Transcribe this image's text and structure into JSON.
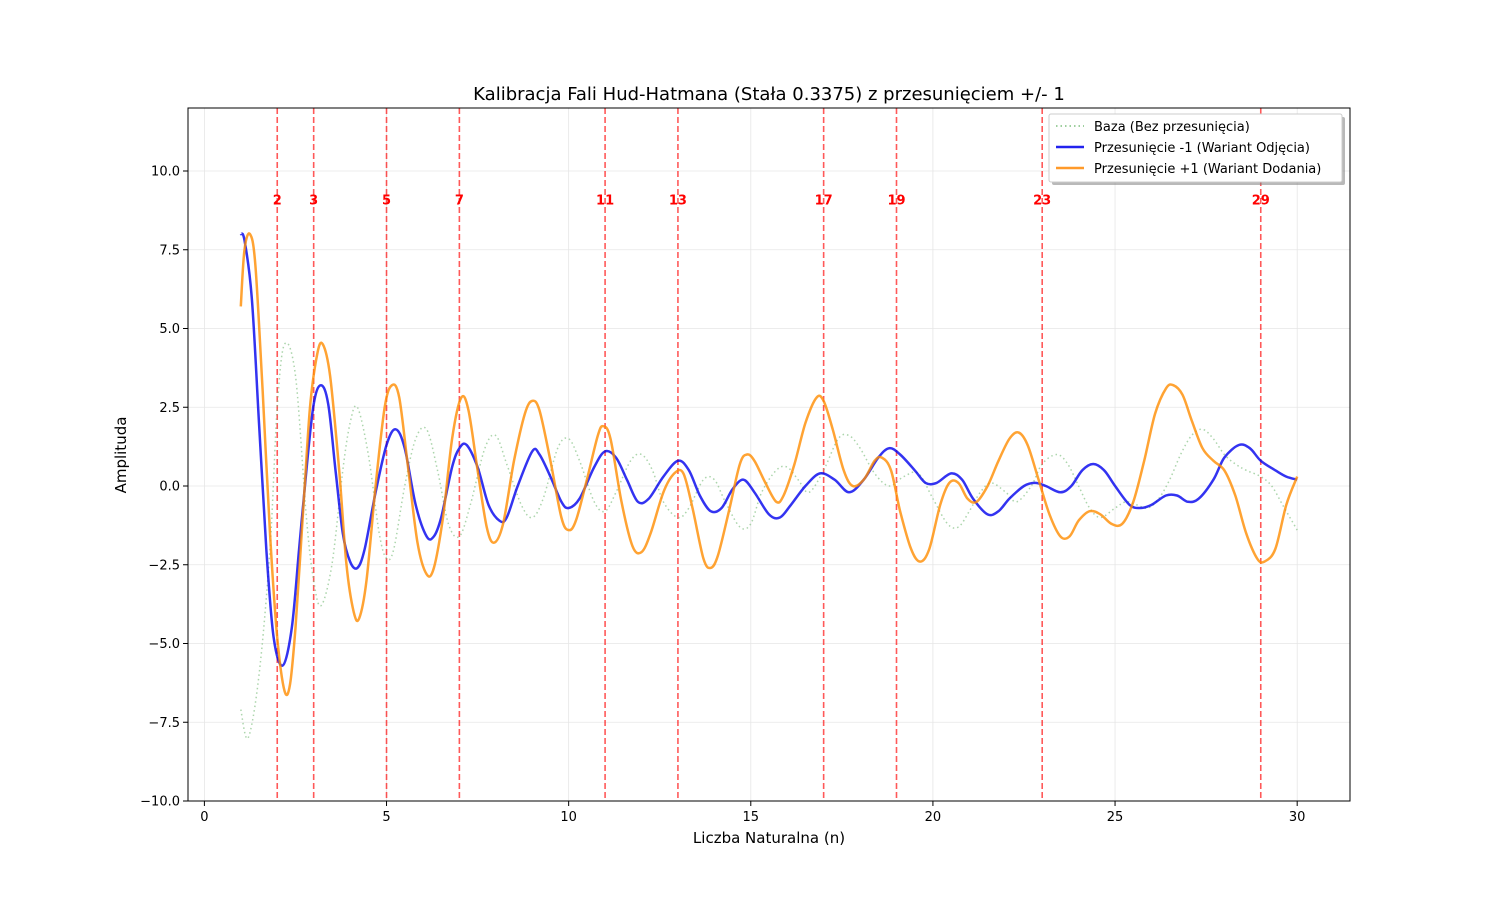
{
  "chart_data": {
    "type": "line",
    "title": "Kalibracja Fali Hud-Hatmana (Stała 0.3375) z przesunięciem +/- 1",
    "xlabel": "Liczba Naturalna (n)",
    "ylabel": "Amplituda",
    "xlim": [
      -0.45,
      31.45
    ],
    "ylim": [
      -10,
      12
    ],
    "xticks": [
      0,
      5,
      10,
      15,
      20,
      25,
      30
    ],
    "xtick_labels": [
      "0",
      "5",
      "10",
      "15",
      "20",
      "25",
      "30"
    ],
    "yticks": [
      -10,
      -7.5,
      -5,
      -2.5,
      0,
      2.5,
      5,
      7.5,
      10
    ],
    "ytick_labels": [
      "−10.0",
      "−7.5",
      "−5.0",
      "−2.5",
      "0.0",
      "2.5",
      "5.0",
      "7.5",
      "10.0"
    ],
    "grid": true,
    "legend_position": "top-right",
    "primes": {
      "values": [
        2,
        3,
        5,
        7,
        11,
        13,
        17,
        19,
        23,
        29
      ],
      "labels": [
        "2",
        "3",
        "5",
        "7",
        "11",
        "13",
        "17",
        "19",
        "23",
        "29"
      ],
      "label_y": 9.1,
      "color": "#ff0000"
    },
    "series": [
      {
        "name": "Baza (Bez przesunięcia)",
        "color": "#7fbf7f",
        "style": "dotted",
        "points": [
          [
            1.0,
            -7.1
          ],
          [
            1.2,
            -8.0
          ],
          [
            1.5,
            -6.0
          ],
          [
            1.8,
            -2.0
          ],
          [
            2.0,
            2.5
          ],
          [
            2.2,
            4.5
          ],
          [
            2.5,
            3.5
          ],
          [
            2.8,
            -1.0
          ],
          [
            3.0,
            -3.0
          ],
          [
            3.2,
            -3.8
          ],
          [
            3.5,
            -2.5
          ],
          [
            3.8,
            0.5
          ],
          [
            4.0,
            2.0
          ],
          [
            4.2,
            2.5
          ],
          [
            4.5,
            1.0
          ],
          [
            4.8,
            -1.5
          ],
          [
            5.0,
            -2.3
          ],
          [
            5.2,
            -2.0
          ],
          [
            5.5,
            0.0
          ],
          [
            5.8,
            1.5
          ],
          [
            6.1,
            1.8
          ],
          [
            6.4,
            0.5
          ],
          [
            6.7,
            -1.2
          ],
          [
            7.0,
            -1.6
          ],
          [
            7.3,
            -0.6
          ],
          [
            7.7,
            1.2
          ],
          [
            8.0,
            1.6
          ],
          [
            8.3,
            0.7
          ],
          [
            8.7,
            -0.6
          ],
          [
            9.0,
            -1.0
          ],
          [
            9.3,
            -0.4
          ],
          [
            9.7,
            1.2
          ],
          [
            10.0,
            1.5
          ],
          [
            10.3,
            0.8
          ],
          [
            10.7,
            -0.5
          ],
          [
            11.0,
            -0.8
          ],
          [
            11.3,
            -0.2
          ],
          [
            11.7,
            0.8
          ],
          [
            12.0,
            1.0
          ],
          [
            12.3,
            0.5
          ],
          [
            12.6,
            -0.5
          ],
          [
            13.0,
            -1.0
          ],
          [
            13.3,
            -0.7
          ],
          [
            13.7,
            0.2
          ],
          [
            14.0,
            0.2
          ],
          [
            14.3,
            -0.5
          ],
          [
            14.7,
            -1.3
          ],
          [
            15.0,
            -1.2
          ],
          [
            15.3,
            -0.2
          ],
          [
            15.7,
            0.5
          ],
          [
            16.0,
            0.6
          ],
          [
            16.3,
            0.2
          ],
          [
            16.6,
            -0.2
          ],
          [
            17.0,
            0.5
          ],
          [
            17.4,
            1.5
          ],
          [
            17.7,
            1.6
          ],
          [
            18.0,
            1.2
          ],
          [
            18.4,
            0.4
          ],
          [
            18.8,
            0.0
          ],
          [
            19.2,
            0.3
          ],
          [
            19.6,
            0.4
          ],
          [
            20.0,
            -0.4
          ],
          [
            20.4,
            -1.2
          ],
          [
            20.7,
            -1.3
          ],
          [
            21.0,
            -0.8
          ],
          [
            21.3,
            -0.2
          ],
          [
            21.6,
            0.1
          ],
          [
            22.0,
            -0.2
          ],
          [
            22.3,
            -0.5
          ],
          [
            22.7,
            0.0
          ],
          [
            23.0,
            0.7
          ],
          [
            23.4,
            1.0
          ],
          [
            23.7,
            0.7
          ],
          [
            24.0,
            0.0
          ],
          [
            24.3,
            -0.7
          ],
          [
            24.6,
            -1.0
          ],
          [
            25.0,
            -0.7
          ],
          [
            25.3,
            -0.5
          ],
          [
            25.6,
            -0.6
          ],
          [
            25.9,
            -0.7
          ],
          [
            26.2,
            -0.4
          ],
          [
            26.5,
            0.2
          ],
          [
            26.8,
            1.0
          ],
          [
            27.1,
            1.6
          ],
          [
            27.4,
            1.8
          ],
          [
            27.7,
            1.5
          ],
          [
            28.0,
            1.0
          ],
          [
            28.3,
            0.7
          ],
          [
            28.6,
            0.5
          ],
          [
            29.0,
            0.3
          ],
          [
            29.3,
            0.0
          ],
          [
            29.6,
            -0.6
          ],
          [
            30.0,
            -1.4
          ]
        ]
      },
      {
        "name": "Przesunięcie -1 (Wariant Odjęcia)",
        "color": "#0000ee",
        "style": "solid",
        "points": [
          [
            1.0,
            8.0
          ],
          [
            1.1,
            7.8
          ],
          [
            1.3,
            6.0
          ],
          [
            1.5,
            2.0
          ],
          [
            1.7,
            -2.0
          ],
          [
            1.9,
            -4.8
          ],
          [
            2.15,
            -5.7
          ],
          [
            2.4,
            -4.5
          ],
          [
            2.6,
            -2.0
          ],
          [
            2.8,
            0.5
          ],
          [
            3.0,
            2.6
          ],
          [
            3.2,
            3.2
          ],
          [
            3.4,
            2.6
          ],
          [
            3.6,
            0.5
          ],
          [
            3.8,
            -1.5
          ],
          [
            4.0,
            -2.4
          ],
          [
            4.2,
            -2.6
          ],
          [
            4.4,
            -2.0
          ],
          [
            4.7,
            -0.2
          ],
          [
            5.0,
            1.3
          ],
          [
            5.25,
            1.8
          ],
          [
            5.5,
            1.2
          ],
          [
            5.8,
            -0.6
          ],
          [
            6.1,
            -1.6
          ],
          [
            6.3,
            -1.6
          ],
          [
            6.5,
            -1.0
          ],
          [
            6.8,
            0.6
          ],
          [
            7.0,
            1.2
          ],
          [
            7.2,
            1.3
          ],
          [
            7.5,
            0.6
          ],
          [
            7.8,
            -0.6
          ],
          [
            8.1,
            -1.1
          ],
          [
            8.3,
            -1.0
          ],
          [
            8.6,
            0.0
          ],
          [
            9.0,
            1.1
          ],
          [
            9.2,
            1.0
          ],
          [
            9.5,
            0.3
          ],
          [
            9.8,
            -0.5
          ],
          [
            10.0,
            -0.7
          ],
          [
            10.3,
            -0.4
          ],
          [
            10.7,
            0.6
          ],
          [
            11.0,
            1.1
          ],
          [
            11.3,
            0.9
          ],
          [
            11.6,
            0.2
          ],
          [
            11.9,
            -0.5
          ],
          [
            12.2,
            -0.4
          ],
          [
            12.6,
            0.3
          ],
          [
            13.0,
            0.8
          ],
          [
            13.3,
            0.5
          ],
          [
            13.6,
            -0.3
          ],
          [
            13.9,
            -0.8
          ],
          [
            14.2,
            -0.7
          ],
          [
            14.5,
            -0.1
          ],
          [
            14.8,
            0.2
          ],
          [
            15.1,
            -0.2
          ],
          [
            15.5,
            -0.9
          ],
          [
            15.8,
            -1.0
          ],
          [
            16.1,
            -0.6
          ],
          [
            16.5,
            0.0
          ],
          [
            16.9,
            0.4
          ],
          [
            17.3,
            0.2
          ],
          [
            17.7,
            -0.2
          ],
          [
            18.1,
            0.2
          ],
          [
            18.5,
            0.9
          ],
          [
            18.8,
            1.2
          ],
          [
            19.1,
            1.0
          ],
          [
            19.5,
            0.5
          ],
          [
            19.8,
            0.1
          ],
          [
            20.1,
            0.1
          ],
          [
            20.5,
            0.4
          ],
          [
            20.8,
            0.2
          ],
          [
            21.1,
            -0.4
          ],
          [
            21.5,
            -0.9
          ],
          [
            21.8,
            -0.8
          ],
          [
            22.1,
            -0.4
          ],
          [
            22.5,
            0.0
          ],
          [
            22.8,
            0.1
          ],
          [
            23.1,
            0.0
          ],
          [
            23.5,
            -0.2
          ],
          [
            23.8,
            0.0
          ],
          [
            24.1,
            0.5
          ],
          [
            24.4,
            0.7
          ],
          [
            24.7,
            0.5
          ],
          [
            25.0,
            0.0
          ],
          [
            25.4,
            -0.6
          ],
          [
            25.7,
            -0.7
          ],
          [
            26.0,
            -0.6
          ],
          [
            26.4,
            -0.3
          ],
          [
            26.7,
            -0.3
          ],
          [
            27.0,
            -0.5
          ],
          [
            27.3,
            -0.4
          ],
          [
            27.7,
            0.2
          ],
          [
            28.0,
            0.9
          ],
          [
            28.4,
            1.3
          ],
          [
            28.7,
            1.2
          ],
          [
            29.0,
            0.8
          ],
          [
            29.4,
            0.5
          ],
          [
            29.7,
            0.3
          ],
          [
            30.0,
            0.2
          ]
        ]
      },
      {
        "name": "Przesunięcie +1 (Wariant Dodania)",
        "color": "#ff8c00",
        "style": "solid",
        "points": [
          [
            1.0,
            5.7
          ],
          [
            1.1,
            7.5
          ],
          [
            1.25,
            8.0
          ],
          [
            1.4,
            7.0
          ],
          [
            1.6,
            3.0
          ],
          [
            1.8,
            -1.5
          ],
          [
            2.0,
            -4.8
          ],
          [
            2.2,
            -6.5
          ],
          [
            2.35,
            -6.3
          ],
          [
            2.5,
            -4.5
          ],
          [
            2.7,
            -1.0
          ],
          [
            2.9,
            2.5
          ],
          [
            3.1,
            4.2
          ],
          [
            3.25,
            4.5
          ],
          [
            3.45,
            3.5
          ],
          [
            3.7,
            0.5
          ],
          [
            3.9,
            -2.5
          ],
          [
            4.1,
            -4.0
          ],
          [
            4.25,
            -4.2
          ],
          [
            4.45,
            -3.0
          ],
          [
            4.7,
            0.0
          ],
          [
            4.95,
            2.5
          ],
          [
            5.15,
            3.2
          ],
          [
            5.35,
            2.8
          ],
          [
            5.6,
            0.5
          ],
          [
            5.85,
            -1.8
          ],
          [
            6.1,
            -2.8
          ],
          [
            6.3,
            -2.6
          ],
          [
            6.55,
            -1.0
          ],
          [
            6.8,
            1.5
          ],
          [
            7.05,
            2.8
          ],
          [
            7.25,
            2.4
          ],
          [
            7.5,
            0.5
          ],
          [
            7.75,
            -1.3
          ],
          [
            7.95,
            -1.8
          ],
          [
            8.2,
            -1.2
          ],
          [
            8.5,
            0.8
          ],
          [
            8.8,
            2.3
          ],
          [
            9.0,
            2.7
          ],
          [
            9.2,
            2.4
          ],
          [
            9.5,
            0.8
          ],
          [
            9.8,
            -1.0
          ],
          [
            10.0,
            -1.4
          ],
          [
            10.2,
            -1.1
          ],
          [
            10.5,
            0.2
          ],
          [
            10.8,
            1.6
          ],
          [
            10.95,
            1.9
          ],
          [
            11.15,
            1.5
          ],
          [
            11.45,
            -0.5
          ],
          [
            11.75,
            -1.9
          ],
          [
            12.0,
            -2.1
          ],
          [
            12.25,
            -1.5
          ],
          [
            12.6,
            -0.2
          ],
          [
            12.9,
            0.4
          ],
          [
            13.15,
            0.4
          ],
          [
            13.4,
            -0.7
          ],
          [
            13.7,
            -2.3
          ],
          [
            13.9,
            -2.6
          ],
          [
            14.1,
            -2.2
          ],
          [
            14.4,
            -0.8
          ],
          [
            14.7,
            0.7
          ],
          [
            14.9,
            1.0
          ],
          [
            15.1,
            0.8
          ],
          [
            15.4,
            0.1
          ],
          [
            15.7,
            -0.5
          ],
          [
            15.9,
            -0.3
          ],
          [
            16.2,
            0.7
          ],
          [
            16.5,
            2.0
          ],
          [
            16.8,
            2.8
          ],
          [
            17.0,
            2.7
          ],
          [
            17.25,
            1.8
          ],
          [
            17.55,
            0.5
          ],
          [
            17.8,
            0.0
          ],
          [
            18.1,
            0.2
          ],
          [
            18.4,
            0.8
          ],
          [
            18.6,
            0.9
          ],
          [
            18.85,
            0.5
          ],
          [
            19.1,
            -0.8
          ],
          [
            19.4,
            -2.0
          ],
          [
            19.65,
            -2.4
          ],
          [
            19.9,
            -2.0
          ],
          [
            20.2,
            -0.6
          ],
          [
            20.45,
            0.1
          ],
          [
            20.7,
            0.1
          ],
          [
            20.95,
            -0.4
          ],
          [
            21.2,
            -0.5
          ],
          [
            21.5,
            0.0
          ],
          [
            21.8,
            0.8
          ],
          [
            22.1,
            1.5
          ],
          [
            22.35,
            1.7
          ],
          [
            22.6,
            1.3
          ],
          [
            22.9,
            0.2
          ],
          [
            23.2,
            -0.9
          ],
          [
            23.5,
            -1.6
          ],
          [
            23.75,
            -1.6
          ],
          [
            24.0,
            -1.1
          ],
          [
            24.3,
            -0.8
          ],
          [
            24.6,
            -0.9
          ],
          [
            24.9,
            -1.2
          ],
          [
            25.2,
            -1.2
          ],
          [
            25.5,
            -0.5
          ],
          [
            25.8,
            0.8
          ],
          [
            26.1,
            2.3
          ],
          [
            26.4,
            3.1
          ],
          [
            26.6,
            3.2
          ],
          [
            26.85,
            2.9
          ],
          [
            27.1,
            2.1
          ],
          [
            27.4,
            1.2
          ],
          [
            27.7,
            0.8
          ],
          [
            28.0,
            0.5
          ],
          [
            28.3,
            -0.3
          ],
          [
            28.6,
            -1.5
          ],
          [
            28.9,
            -2.3
          ],
          [
            29.1,
            -2.4
          ],
          [
            29.4,
            -2.0
          ],
          [
            29.7,
            -0.6
          ],
          [
            30.0,
            0.3
          ]
        ]
      }
    ]
  }
}
